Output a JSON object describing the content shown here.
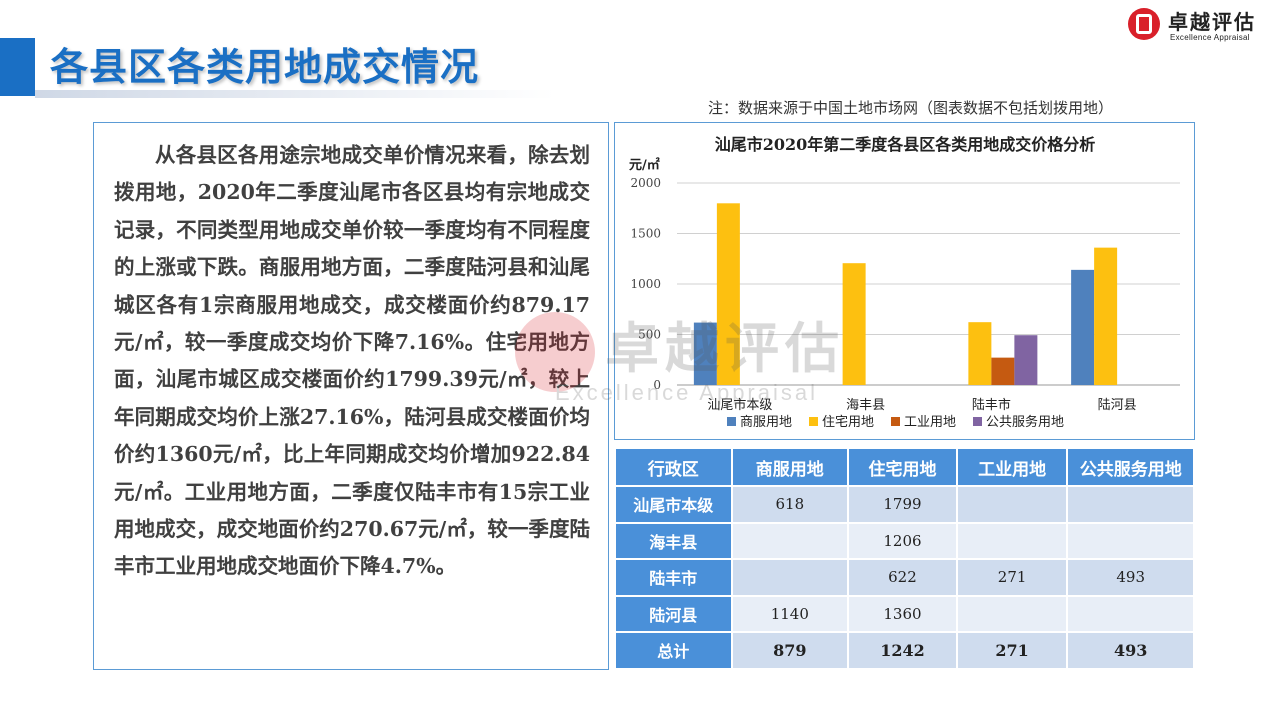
{
  "header": {
    "title": "各县区各类用地成交情况",
    "logo_cn": "卓越评估",
    "logo_en": "Excellence Appraisal",
    "note": "注：数据来源于中国土地市场网（图表数据不包括划拨用地）"
  },
  "body_text": "从各县区各用途宗地成交单价情况来看，除去划拨用地，2020年二季度汕尾市各区县均有宗地成交记录，不同类型用地成交单价较一季度均有不同程度的上涨或下跌。商服用地方面，二季度陆河县和汕尾城区各有1宗商服用地成交，成交楼面价约879.17元/㎡，较一季度成交均价下降7.16%。住宅用地方面，汕尾市城区成交楼面价约1799.39元/㎡，较上年同期成交均价上涨27.16%，陆河县成交楼面价均价约1360元/㎡，比上年同期成交均价增加922.84元/㎡。工业用地方面，二季度仅陆丰市有15宗工业用地成交，成交地面价约270.67元/㎡，较一季度陆丰市工业用地成交地面价下降4.7%。",
  "watermark": {
    "cn": "卓越评估",
    "en": "Excellence Appraisal"
  },
  "chart_data": {
    "type": "bar",
    "title": "汕尾市2020年第二季度各县区各类用地成交价格分析",
    "ylabel": "元/㎡",
    "xlabel": "",
    "ylim": [
      0,
      2000
    ],
    "yticks": [
      0,
      500,
      1000,
      1500,
      2000
    ],
    "grid": true,
    "legend_position": "bottom",
    "categories": [
      "汕尾市本级",
      "海丰县",
      "陆丰市",
      "陆河县"
    ],
    "series": [
      {
        "name": "商服用地",
        "color": "#4f81bd",
        "values": [
          618,
          null,
          null,
          1140
        ]
      },
      {
        "name": "住宅用地",
        "color": "#fdc010",
        "values": [
          1799,
          1206,
          622,
          1360
        ]
      },
      {
        "name": "工业用地",
        "color": "#c55a11",
        "values": [
          null,
          null,
          271,
          null
        ]
      },
      {
        "name": "公共服务用地",
        "color": "#8064a2",
        "values": [
          null,
          null,
          493,
          null
        ]
      }
    ]
  },
  "table": {
    "headers": [
      "行政区",
      "商服用地",
      "住宅用地",
      "工业用地",
      "公共服务用地"
    ],
    "rows": [
      {
        "name": "汕尾市本级",
        "cells": [
          "618",
          "1799",
          "",
          ""
        ]
      },
      {
        "name": "海丰县",
        "cells": [
          "",
          "1206",
          "",
          ""
        ]
      },
      {
        "name": "陆丰市",
        "cells": [
          "",
          "622",
          "271",
          "493"
        ]
      },
      {
        "name": "陆河县",
        "cells": [
          "1140",
          "1360",
          "",
          ""
        ]
      }
    ],
    "total": {
      "name": "总计",
      "cells": [
        "879",
        "1242",
        "271",
        "493"
      ]
    }
  }
}
